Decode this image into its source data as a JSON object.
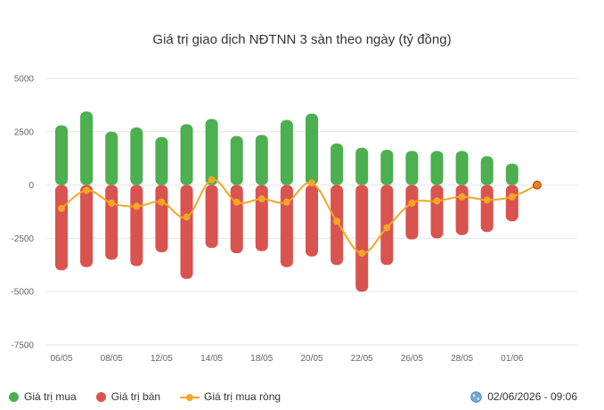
{
  "title": "Giá trị giao dịch NĐTNN 3 sàn theo ngày (tỷ đồng)",
  "timestamp": "02/06/2026 - 09:06",
  "legend": {
    "buy": "Giá trị mua",
    "sell": "Giá trị bán",
    "net": "Giá trị mua ròng"
  },
  "colors": {
    "buy": "#4caf50",
    "sell": "#d9534f",
    "net": "#f5a623",
    "net_last": "#f07d1e"
  },
  "chart_data": {
    "type": "bar",
    "title": "Giá trị giao dịch NĐTNN 3 sàn theo ngày (tỷ đồng)",
    "ylim": [
      -7500,
      5000
    ],
    "yticks": [
      5000,
      2500,
      0,
      -2500,
      -5000,
      -7500
    ],
    "xtick_labels": [
      "06/05",
      "08/05",
      "12/05",
      "14/05",
      "18/05",
      "20/05",
      "22/05",
      "26/05",
      "28/05",
      "01/06"
    ],
    "xtick_indices": [
      0,
      2,
      4,
      6,
      8,
      10,
      12,
      14,
      16,
      18
    ],
    "grid": true,
    "legend_position": "bottom",
    "series": [
      {
        "name": "Giá trị mua",
        "type": "bar",
        "values": [
          2800,
          3450,
          2500,
          2700,
          2250,
          2850,
          3100,
          2300,
          2350,
          3050,
          3350,
          1950,
          1750,
          1650,
          1600,
          1600,
          1600,
          1350,
          1000,
          null
        ]
      },
      {
        "name": "Giá trị bán",
        "type": "bar",
        "values": [
          -4000,
          -3850,
          -3500,
          -3800,
          -3150,
          -4400,
          -2950,
          -3200,
          -3100,
          -3850,
          -3350,
          -3750,
          -5000,
          -3750,
          -2550,
          -2500,
          -2350,
          -2200,
          -1700,
          null
        ]
      },
      {
        "name": "Giá trị mua ròng",
        "type": "line",
        "values": [
          -1100,
          -250,
          -850,
          -1000,
          -800,
          -1500,
          250,
          -800,
          -650,
          -800,
          100,
          -1700,
          -3200,
          -2000,
          -850,
          -750,
          -550,
          -700,
          -550,
          0
        ]
      }
    ]
  }
}
